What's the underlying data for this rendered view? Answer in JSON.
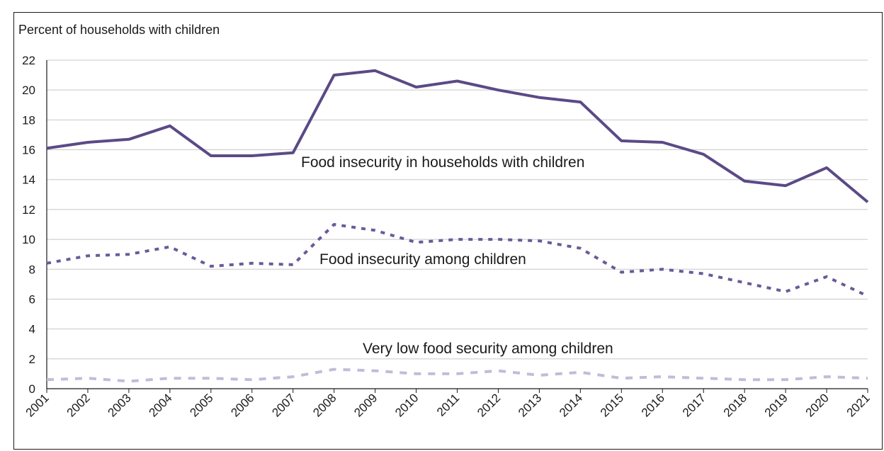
{
  "chart_data": {
    "type": "line",
    "title": "",
    "ylabel": "Percent of households with children",
    "xlabel": "",
    "ylim": [
      0,
      22
    ],
    "yticks": [
      0,
      2,
      4,
      6,
      8,
      10,
      12,
      14,
      16,
      18,
      20,
      22
    ],
    "grid": true,
    "categories": [
      "2001",
      "2002",
      "2003",
      "2004",
      "2005",
      "2006",
      "2007",
      "2008",
      "2009",
      "2010",
      "2011",
      "2012",
      "2013",
      "2014",
      "2015",
      "2016",
      "2017",
      "2018",
      "2019",
      "2020",
      "2021"
    ],
    "series": [
      {
        "name": "Food insecurity in households with children",
        "style": "solid",
        "color": "#5b4a86",
        "values": [
          16.1,
          16.5,
          16.7,
          17.6,
          15.6,
          15.6,
          15.8,
          21.0,
          21.3,
          20.2,
          20.6,
          20.0,
          19.5,
          19.2,
          16.6,
          16.5,
          15.7,
          13.9,
          13.6,
          14.8,
          12.5
        ]
      },
      {
        "name": "Food insecurity among children",
        "style": "dotted",
        "color": "#6b5a99",
        "values": [
          8.4,
          8.9,
          9.0,
          9.5,
          8.2,
          8.4,
          8.3,
          11.0,
          10.6,
          9.8,
          10.0,
          10.0,
          9.9,
          9.4,
          7.8,
          8.0,
          7.7,
          7.1,
          6.5,
          7.5,
          6.2
        ]
      },
      {
        "name": "Very low food security among children",
        "style": "dashed",
        "color": "#c3bbd8",
        "values": [
          0.6,
          0.7,
          0.5,
          0.7,
          0.7,
          0.6,
          0.8,
          1.3,
          1.2,
          1.0,
          1.0,
          1.2,
          0.9,
          1.1,
          0.7,
          0.8,
          0.7,
          0.6,
          0.6,
          0.8,
          0.7
        ]
      }
    ]
  },
  "colors": {
    "grid": "#c8c8c8",
    "axis": "#1a1a1a",
    "frame": "#1a1a1a"
  }
}
